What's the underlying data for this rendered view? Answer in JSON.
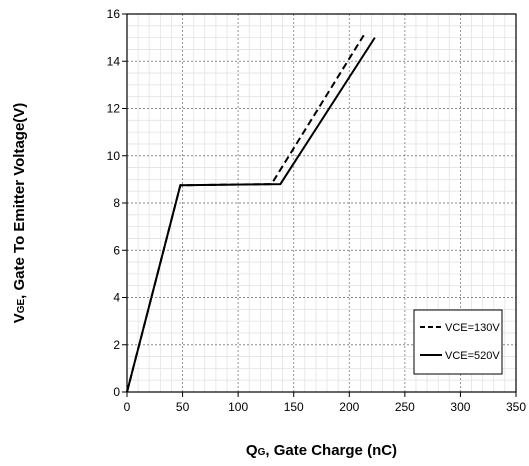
{
  "chart_data": {
    "type": "line",
    "xlabel": {
      "main": "Q",
      "sub": "G",
      "rest": ", Gate Charge (nC)"
    },
    "ylabel": {
      "main": "V",
      "sub": "GE",
      "rest": ", Gate To Emitter Voltage(V)"
    },
    "xlim": [
      0,
      350
    ],
    "ylim": [
      0,
      16
    ],
    "x_ticks": [
      0,
      50,
      100,
      150,
      200,
      250,
      300,
      350
    ],
    "y_ticks": [
      0,
      2,
      4,
      6,
      8,
      10,
      12,
      14,
      16
    ],
    "x_minor_step": 10,
    "y_minor_step": 0.5,
    "grid": true,
    "legend": "bottom-right",
    "series": [
      {
        "name": "VCE=130V",
        "style": "dashed",
        "color": "#000000",
        "x": [
          0,
          48,
          130,
          213
        ],
        "y": [
          0,
          8.75,
          8.8,
          15.1
        ]
      },
      {
        "name": "VCE=520V",
        "style": "solid",
        "color": "#000000",
        "x": [
          0,
          48,
          138,
          223
        ],
        "y": [
          0,
          8.75,
          8.8,
          15.0
        ]
      }
    ]
  }
}
